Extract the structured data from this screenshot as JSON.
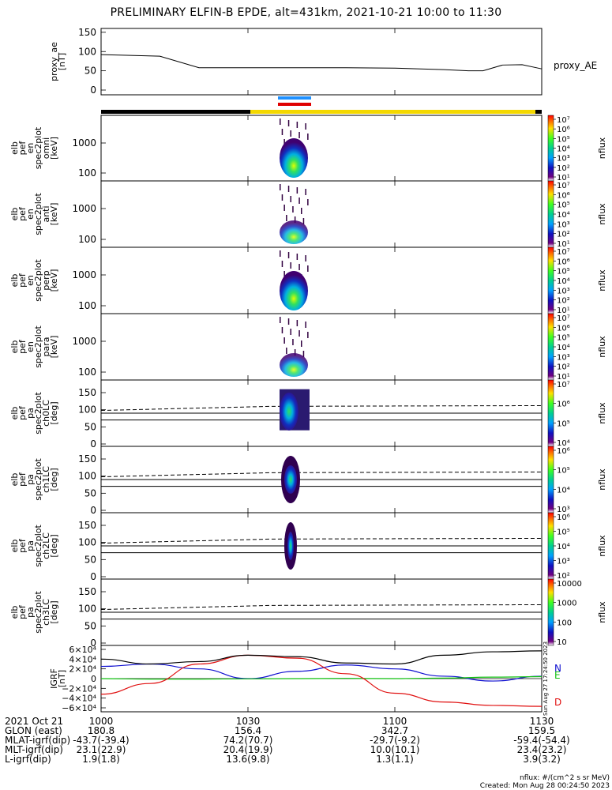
{
  "title": "PRELIMINARY ELFIN-B EPDE, alt=431km, 2021-10-21 10:00 to 11:30",
  "chart_data": [
    {
      "type": "line",
      "panel": "proxy_ae",
      "ylabel": [
        "proxy_ae",
        "[nT]"
      ],
      "yticks": [
        "150",
        "100",
        "50",
        "0"
      ],
      "ylim": [
        0,
        160
      ],
      "legend": "proxy_AE",
      "x_minutes": [
        0,
        12,
        20,
        30,
        40,
        50,
        60,
        70,
        75,
        78,
        82,
        86,
        90
      ],
      "values": [
        92,
        88,
        58,
        58,
        58,
        58,
        57,
        53,
        50,
        50,
        65,
        66,
        55
      ]
    },
    {
      "type": "heatmap",
      "panel": "omni",
      "ylabel": [
        "elb",
        "pef",
        "en",
        "spec2plot",
        "omni",
        "[keV]"
      ],
      "yticks": [
        "1000",
        "100"
      ],
      "scale": "log",
      "cbar_label": "nflux",
      "cbar_ticks": [
        "10⁷",
        "10⁶",
        "10⁵",
        "10⁴",
        "10³",
        "10²",
        "10¹"
      ]
    },
    {
      "type": "heatmap",
      "panel": "anti",
      "ylabel": [
        "elb",
        "pef",
        "en",
        "spec2plot",
        "anti",
        "[keV]"
      ],
      "yticks": [
        "1000",
        "100"
      ],
      "scale": "log",
      "cbar_label": "nflux",
      "cbar_ticks": [
        "10⁷",
        "10⁶",
        "10⁵",
        "10⁴",
        "10³",
        "10²",
        "10¹"
      ]
    },
    {
      "type": "heatmap",
      "panel": "perp",
      "ylabel": [
        "elb",
        "pef",
        "en",
        "spec2plot",
        "perp",
        "[keV]"
      ],
      "yticks": [
        "1000",
        "100"
      ],
      "scale": "log",
      "cbar_label": "nflux",
      "cbar_ticks": [
        "10⁷",
        "10⁶",
        "10⁵",
        "10⁴",
        "10³",
        "10²",
        "10¹"
      ]
    },
    {
      "type": "heatmap",
      "panel": "para",
      "ylabel": [
        "elb",
        "pef",
        "en",
        "spec2plot",
        "para",
        "[keV]"
      ],
      "yticks": [
        "1000",
        "100"
      ],
      "scale": "log",
      "cbar_label": "nflux",
      "cbar_ticks": [
        "10⁷",
        "10⁶",
        "10⁵",
        "10⁴",
        "10³",
        "10²",
        "10¹"
      ]
    },
    {
      "type": "heatmap",
      "panel": "ch0LC",
      "ylabel": [
        "elb",
        "pef",
        "pa",
        "spec2plot",
        "ch0LC",
        "[deg]"
      ],
      "yticks": [
        "150",
        "100",
        "50",
        "0"
      ],
      "cbar_label": "nflux",
      "cbar_ticks": [
        "10⁷",
        "10⁶",
        "10⁵",
        "10⁴"
      ]
    },
    {
      "type": "heatmap",
      "panel": "ch1LC",
      "ylabel": [
        "elb",
        "pef",
        "pa",
        "spec2plot",
        "ch1LC",
        "[deg]"
      ],
      "yticks": [
        "150",
        "100",
        "50",
        "0"
      ],
      "cbar_label": "nflux",
      "cbar_ticks": [
        "10⁶",
        "10⁵",
        "10⁴",
        "10³"
      ]
    },
    {
      "type": "heatmap",
      "panel": "ch2LC",
      "ylabel": [
        "elb",
        "pef",
        "pa",
        "spec2plot",
        "ch2LC",
        "[deg]"
      ],
      "yticks": [
        "150",
        "100",
        "50",
        "0"
      ],
      "cbar_label": "nflux",
      "cbar_ticks": [
        "10⁶",
        "10⁵",
        "10⁴",
        "10³",
        "10²"
      ]
    },
    {
      "type": "heatmap",
      "panel": "ch3LC",
      "ylabel": [
        "elb",
        "pef",
        "pa",
        "spec2plot",
        "ch3LC",
        "[deg]"
      ],
      "yticks": [
        "150",
        "100",
        "50",
        "0"
      ],
      "cbar_label": "nflux",
      "cbar_ticks": [
        "10000",
        "1000",
        "100",
        "10"
      ]
    },
    {
      "type": "line",
      "panel": "IGRF",
      "ylabel": [
        "IGRF",
        "[nT]"
      ],
      "yticks": [
        "6×10⁴",
        "4×10⁴",
        "2×10⁴",
        "0",
        "−2×10⁴",
        "−4×10⁴",
        "−6×10⁴"
      ],
      "ylim": [
        -60000,
        60000
      ],
      "x_minutes": [
        0,
        10,
        20,
        30,
        40,
        50,
        60,
        70,
        80,
        90
      ],
      "series": [
        {
          "name": "N",
          "color": "#1010d0",
          "values": [
            25000,
            30000,
            20000,
            0,
            15000,
            28000,
            20000,
            5000,
            -5000,
            5000
          ]
        },
        {
          "name": "E",
          "color": "#10c010",
          "values": [
            0,
            -1000,
            -1000,
            -500,
            0,
            500,
            0,
            1000,
            3000,
            4000
          ]
        },
        {
          "name": "D",
          "color": "#e01010",
          "values": [
            -32000,
            -10000,
            30000,
            48000,
            42000,
            10000,
            -30000,
            -48000,
            -55000,
            -57000
          ]
        },
        {
          "name": "",
          "color": "#000000",
          "values": [
            40000,
            30000,
            35000,
            48000,
            45000,
            32000,
            30000,
            48000,
            55000,
            57000
          ]
        }
      ],
      "side_text": "Sun Aug 27 17:24:50 2023"
    }
  ],
  "xaxis": {
    "ticks": [
      "1000",
      "1030",
      "1100",
      "1130"
    ],
    "rows": [
      {
        "label": "2021 Oct 21",
        "values": [
          "1000",
          "1030",
          "1100",
          "1130"
        ]
      },
      {
        "label": "GLON (east)",
        "values": [
          "180.8",
          "156.4",
          "342.7",
          "159.5"
        ]
      },
      {
        "label": "MLAT-igrf(dip)",
        "values": [
          "-43.7(-39.4)",
          "74.2(70.7)",
          "-29.7(-9.2)",
          "-59.4(-54.4)"
        ]
      },
      {
        "label": "MLT-igrf(dip)",
        "values": [
          "23.1(22.9)",
          "20.4(19.9)",
          "10.0(10.1)",
          "23.4(23.2)"
        ]
      },
      {
        "label": "L-igrf(dip)",
        "values": [
          "1.9(1.8)",
          "13.6(9.8)",
          "1.3(1.1)",
          "3.9(3.2)"
        ]
      }
    ]
  },
  "footer": {
    "units": "nflux: #/(cm^2 s sr MeV)",
    "created": "Created: Mon Aug 28 00:24:50 2023"
  }
}
